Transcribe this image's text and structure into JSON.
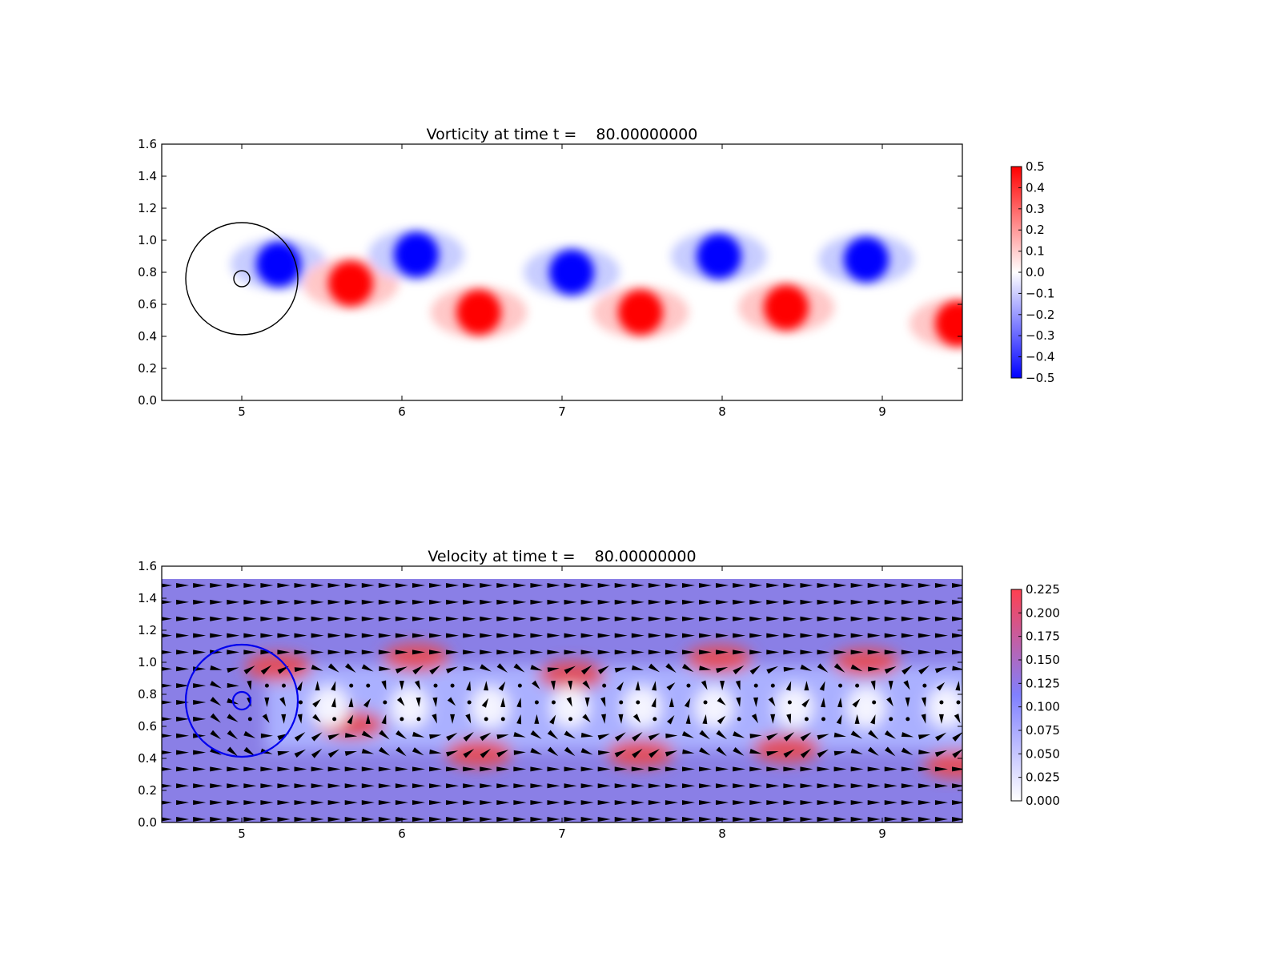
{
  "chart_data": [
    {
      "type": "heatmap",
      "title": "Vorticity at time t =    80.00000000",
      "xlim": [
        4.5,
        9.5
      ],
      "ylim": [
        0.0,
        1.6
      ],
      "xticks": [
        5,
        6,
        7,
        8,
        9
      ],
      "yticks": [
        0.0,
        0.2,
        0.4,
        0.6,
        0.8,
        1.0,
        1.2,
        1.4,
        1.6
      ],
      "colormap": "bwr",
      "colorbar": {
        "range": [
          -0.5,
          0.5
        ],
        "ticks": [
          "0.5",
          "0.4",
          "0.3",
          "0.2",
          "0.1",
          "0.0",
          "−0.1",
          "−0.2",
          "−0.3",
          "−0.4",
          "−0.5"
        ],
        "low_color": "#0000ff",
        "mid_color": "#ffffff",
        "high_color": "#ff0000"
      },
      "vortices": [
        {
          "x": 5.23,
          "y": 0.85,
          "sign": -1,
          "strength": 0.5
        },
        {
          "x": 5.68,
          "y": 0.73,
          "sign": 1,
          "strength": 0.5
        },
        {
          "x": 6.09,
          "y": 0.91,
          "sign": -1,
          "strength": 0.5
        },
        {
          "x": 6.48,
          "y": 0.55,
          "sign": 1,
          "strength": 0.5
        },
        {
          "x": 7.06,
          "y": 0.8,
          "sign": -1,
          "strength": 0.5
        },
        {
          "x": 7.49,
          "y": 0.55,
          "sign": 1,
          "strength": 0.5
        },
        {
          "x": 7.98,
          "y": 0.9,
          "sign": -1,
          "strength": 0.5
        },
        {
          "x": 8.4,
          "y": 0.58,
          "sign": 1,
          "strength": 0.5
        },
        {
          "x": 8.9,
          "y": 0.88,
          "sign": -1,
          "strength": 0.5
        },
        {
          "x": 9.47,
          "y": 0.48,
          "sign": 1,
          "strength": 0.5
        }
      ],
      "circles": [
        {
          "cx": 5.0,
          "cy": 0.76,
          "r": 0.35,
          "color": "#000000"
        },
        {
          "cx": 5.0,
          "cy": 0.76,
          "r": 0.05,
          "color": "#000000"
        }
      ]
    },
    {
      "type": "heatmap",
      "subtype": "quiver",
      "title": "Velocity at time t =    80.00000000",
      "xlim": [
        4.5,
        9.5
      ],
      "ylim": [
        0.0,
        1.6
      ],
      "xticks": [
        5,
        6,
        7,
        8,
        9
      ],
      "yticks": [
        0.0,
        0.2,
        0.4,
        0.6,
        0.8,
        1.0,
        1.2,
        1.4,
        1.6
      ],
      "data_top": 1.52,
      "colorbar": {
        "range": [
          0.0,
          0.225
        ],
        "ticks": [
          "0.225",
          "0.200",
          "0.175",
          "0.150",
          "0.125",
          "0.100",
          "0.075",
          "0.050",
          "0.025",
          "0.000"
        ],
        "low_color": "#ffffff",
        "mid_color": "#8080ff",
        "high_color": "#ff4050"
      },
      "quiver_grid": {
        "nx": 48,
        "ny": 15,
        "color": "#000000"
      },
      "circles": [
        {
          "cx": 5.0,
          "cy": 0.76,
          "r": 0.35,
          "color": "#0000ee"
        },
        {
          "cx": 5.0,
          "cy": 0.76,
          "r": 0.055,
          "color": "#0000ee"
        }
      ]
    }
  ]
}
